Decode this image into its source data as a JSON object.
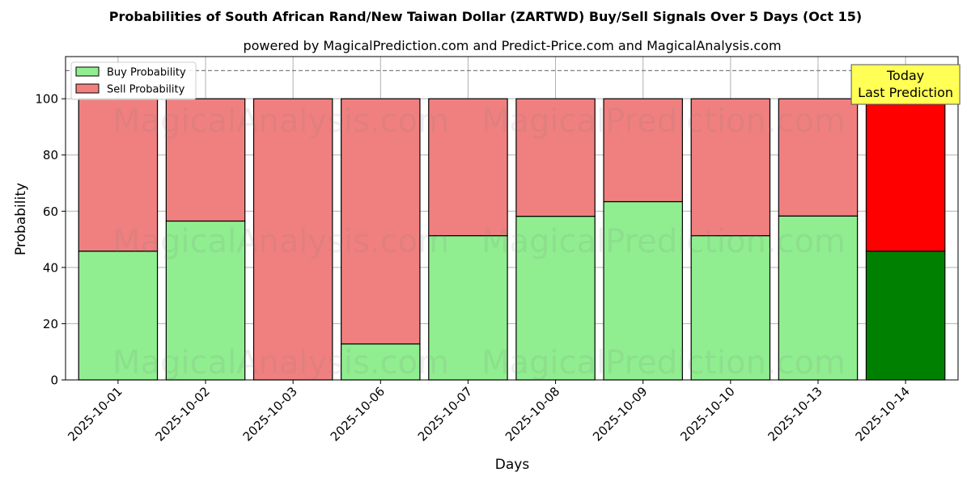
{
  "chart_data": {
    "type": "bar",
    "stacked": true,
    "title": "Probabilities of South African Rand/New Taiwan Dollar (ZARTWD) Buy/Sell Signals Over 5 Days (Oct 15)",
    "subtitle": "powered by MagicalPrediction.com and Predict-Price.com and MagicalAnalysis.com",
    "xlabel": "Days",
    "ylabel": "Probability",
    "ylim": [
      0,
      115
    ],
    "yticks": [
      "0",
      "20",
      "40",
      "60",
      "80",
      "100"
    ],
    "grid": true,
    "legend_position": "top-left",
    "categories": [
      "2025-10-01",
      "2025-10-02",
      "2025-10-03",
      "2025-10-06",
      "2025-10-07",
      "2025-10-08",
      "2025-10-09",
      "2025-10-10",
      "2025-10-13",
      "2025-10-14"
    ],
    "series": [
      {
        "name": "Buy Probability",
        "values": [
          45.8,
          56.5,
          0,
          12.8,
          51.3,
          58.2,
          63.4,
          51.3,
          58.3,
          45.8
        ],
        "color": "#90ee90",
        "highlight_color": "#008000"
      },
      {
        "name": "Sell Probability",
        "values": [
          54.2,
          43.5,
          100,
          87.2,
          48.7,
          41.8,
          36.6,
          48.7,
          41.7,
          54.2
        ],
        "color": "#f08080",
        "highlight_color": "#ff0000"
      }
    ],
    "highlight_index": 9,
    "reference_line": 110,
    "annotation": {
      "line1": "Today",
      "line2": "Last Prediction",
      "color": "#ffff55"
    },
    "watermarks": [
      "MagicalAnalysis.com",
      "MagicalPrediction.com",
      "MagicalAnalysis.com",
      "MagicalPrediction.com",
      "MagicalAnalysis.com",
      "MagicalPrediction.com"
    ]
  }
}
